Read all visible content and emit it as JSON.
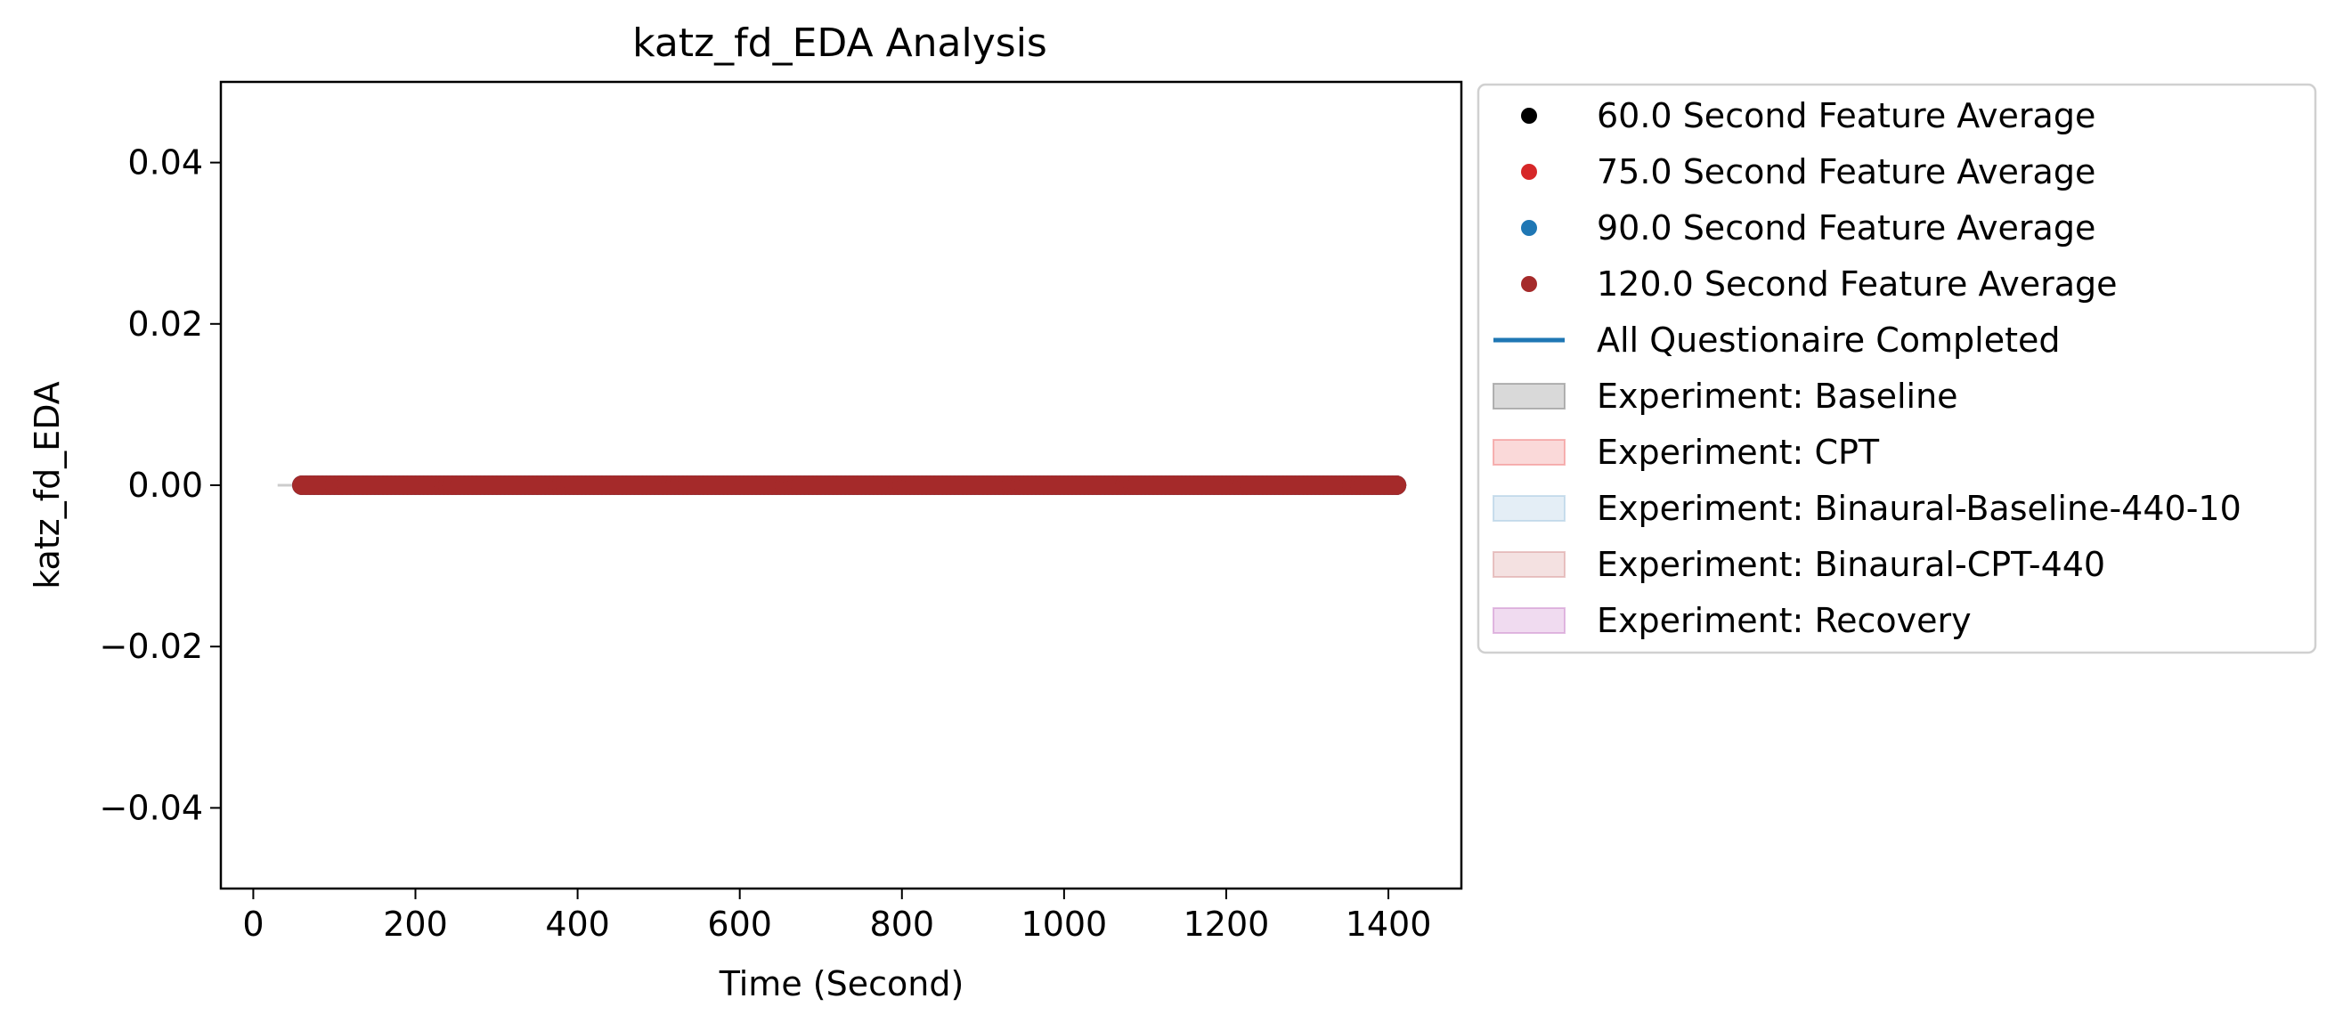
{
  "chart_data": {
    "type": "scatter",
    "title": "katz_fd_EDA Analysis",
    "xlabel": "Time (Second)",
    "ylabel": "katz_fd_EDA",
    "xlim": [
      -40,
      1490
    ],
    "ylim": [
      -0.05,
      0.05
    ],
    "xticks": [
      0,
      200,
      400,
      600,
      800,
      1000,
      1200,
      1400
    ],
    "yticks": [
      -0.04,
      -0.02,
      0.0,
      0.02,
      0.04
    ],
    "ytick_labels": [
      "−0.04",
      "−0.02",
      "0.00",
      "0.02",
      "0.04"
    ],
    "grid": false,
    "legend_position": "outside-right-top",
    "series": [
      {
        "name": "60.0 Second Feature Average",
        "color": "#000000",
        "marker": "circle",
        "x_start": 60,
        "x_end": 1410,
        "step": 5,
        "y": 0
      },
      {
        "name": "75.0 Second Feature Average",
        "color": "#d62728",
        "marker": "circle",
        "x_start": 60,
        "x_end": 1410,
        "step": 5,
        "y": 0
      },
      {
        "name": "90.0 Second Feature Average",
        "color": "#1f77b4",
        "marker": "circle",
        "x_start": 60,
        "x_end": 1410,
        "step": 5,
        "y": 0
      },
      {
        "name": "120.0 Second Feature Average",
        "color": "#a52a2a",
        "marker": "circle",
        "x_start": 60,
        "x_end": 1410,
        "step": 5,
        "y": 0
      }
    ],
    "lines": [
      {
        "name": "All Questionaire Completed",
        "color": "#1f77b4",
        "style": "solid"
      }
    ],
    "shaded_regions": [
      {
        "name": "Experiment: Baseline",
        "color": "#808080"
      },
      {
        "name": "Experiment: CPT",
        "color": "#f08080"
      },
      {
        "name": "Experiment: Binaural-Baseline-440-10",
        "color": "#a6c8e0"
      },
      {
        "name": "Experiment: Binaural-CPT-440",
        "color": "#d99a9a"
      },
      {
        "name": "Experiment: Recovery",
        "color": "#cc88cc"
      }
    ],
    "baseline_segment": {
      "x_start": 30,
      "x_end": 60,
      "y": 0,
      "color": "#cccccc"
    }
  }
}
